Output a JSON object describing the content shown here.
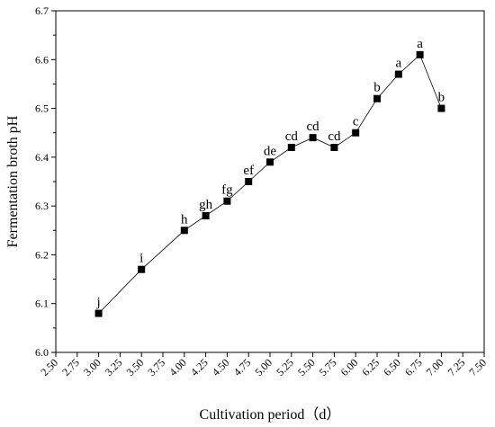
{
  "chart_data": {
    "type": "line",
    "title": "",
    "xlabel": "Cultivation period（d）",
    "ylabel": "Fermentation broth pH",
    "xlim": [
      2.5,
      7.5
    ],
    "ylim": [
      6.0,
      6.7
    ],
    "x_ticks": [
      2.5,
      2.75,
      3.0,
      3.25,
      3.5,
      3.75,
      4.0,
      4.25,
      4.5,
      4.75,
      5.0,
      5.25,
      5.5,
      5.75,
      6.0,
      6.25,
      6.5,
      6.75,
      7.0,
      7.25,
      7.5
    ],
    "x_tick_labels": [
      "2.50",
      "2.75",
      "3.00",
      "3.25",
      "3.50",
      "3.75",
      "4.00",
      "4.25",
      "4.50",
      "4.75",
      "5.00",
      "5.25",
      "5.50",
      "5.75",
      "6.00",
      "6.25",
      "6.50",
      "6.75",
      "7.00",
      "7.25",
      "7.50"
    ],
    "y_ticks": [
      6.0,
      6.1,
      6.2,
      6.3,
      6.4,
      6.5,
      6.6,
      6.7
    ],
    "y_tick_labels": [
      "6.0",
      "6.1",
      "6.2",
      "6.3",
      "6.4",
      "6.5",
      "6.6",
      "6.7"
    ],
    "grid": false,
    "marker": "square",
    "series": [
      {
        "x": [
          3.0,
          3.5,
          4.0,
          4.25,
          4.5,
          4.75,
          5.0,
          5.25,
          5.5,
          5.75,
          6.0,
          6.25,
          6.5,
          6.75,
          7.0
        ],
        "y": [
          6.08,
          6.17,
          6.25,
          6.28,
          6.31,
          6.35,
          6.39,
          6.42,
          6.44,
          6.42,
          6.45,
          6.52,
          6.57,
          6.61,
          6.5
        ],
        "labels": [
          "j",
          "i",
          "h",
          "gh",
          "fg",
          "ef",
          "de",
          "cd",
          "cd",
          "cd",
          "c",
          "b",
          "a",
          "a",
          "b"
        ]
      }
    ]
  }
}
